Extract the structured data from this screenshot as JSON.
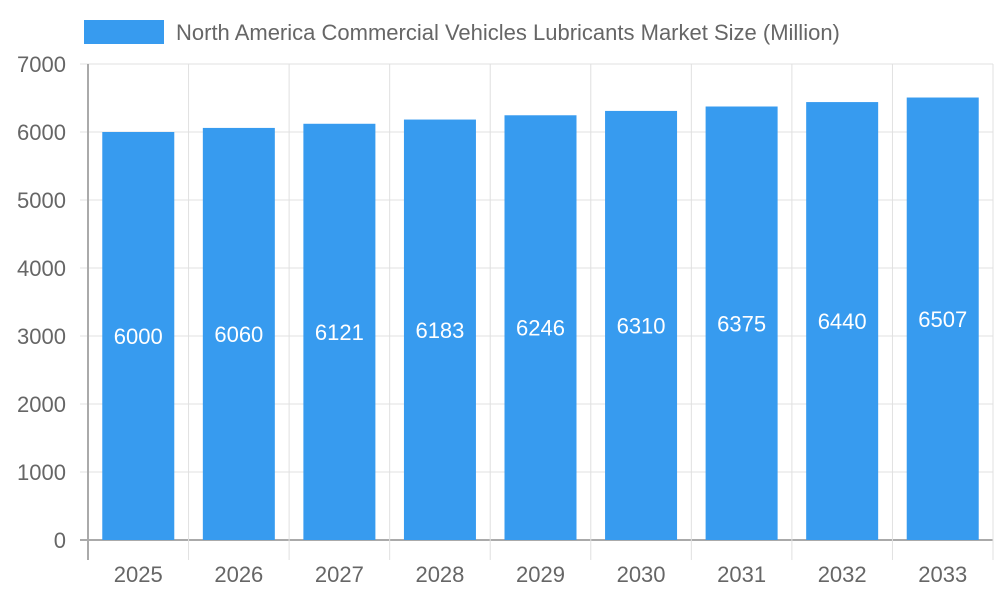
{
  "chart_data": {
    "type": "bar",
    "legend": {
      "label": "North America Commercial Vehicles Lubricants Market Size (Million)",
      "position": "top"
    },
    "categories": [
      "2025",
      "2026",
      "2027",
      "2028",
      "2029",
      "2030",
      "2031",
      "2032",
      "2033"
    ],
    "series": [
      {
        "name": "North America Commercial Vehicles Lubricants Market Size (Million)",
        "values": [
          6000,
          6060,
          6121,
          6183,
          6246,
          6310,
          6375,
          6440,
          6507
        ]
      }
    ],
    "ylim": [
      0,
      7000
    ],
    "yticks": [
      "0",
      "1000",
      "2000",
      "3000",
      "4000",
      "5000",
      "6000",
      "7000"
    ],
    "grid": true,
    "data_labels": true,
    "colors": {
      "bar": "#379bef",
      "grid": "#e0e0e0",
      "axis": "#aaaaaa",
      "text": "#666666",
      "label": "#ffffff"
    }
  }
}
